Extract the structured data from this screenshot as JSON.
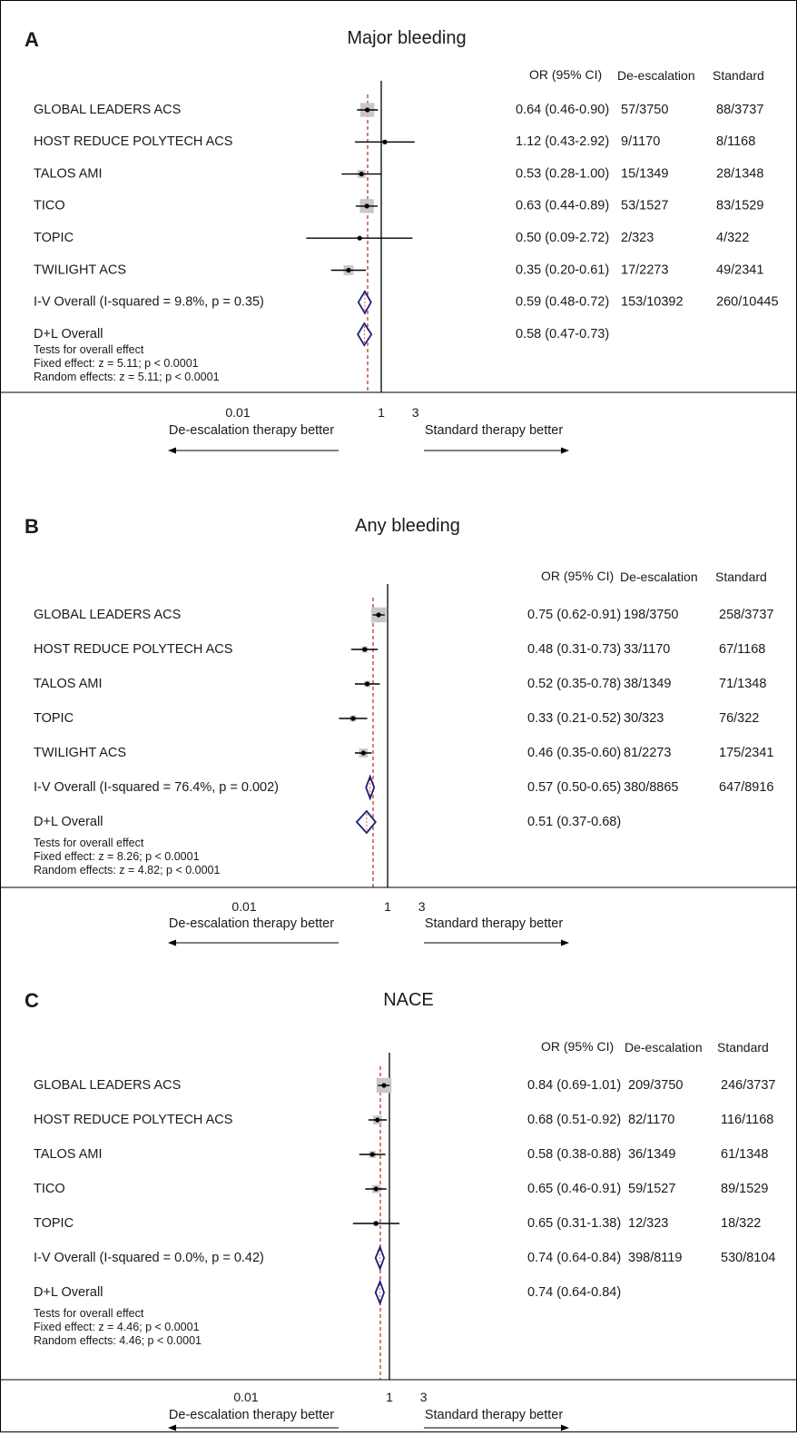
{
  "colors": {
    "text": "#1a1a1a",
    "line": "#000000",
    "box": "#c8c8c8",
    "diamond": "#1f1f7a",
    "reference_dashed": "#c0392b"
  },
  "chart_data": [
    {
      "type": "forest",
      "panel_letter": "A",
      "title": "Major bleeding",
      "column_headers": {
        "or": "OR (95% CI)",
        "de": "De-escalation",
        "std": "Standard"
      },
      "xscale": "log",
      "xticks": [
        {
          "v": 0.01,
          "label": "0.01"
        },
        {
          "v": 1,
          "label": "1"
        },
        {
          "v": 3,
          "label": "3"
        }
      ],
      "direction_labels": {
        "left": "De-escalation therapy better",
        "right": "Standard therapy better"
      },
      "pooled_line": 0.59,
      "rows": [
        {
          "label": "GLOBAL LEADERS ACS",
          "or": 0.64,
          "lo": 0.46,
          "hi": 0.9,
          "weight": 0.3,
          "or_text": "0.64 (0.46-0.90)",
          "de": "57/3750",
          "std": "88/3737"
        },
        {
          "label": "HOST REDUCE POLYTECH ACS",
          "or": 1.12,
          "lo": 0.43,
          "hi": 2.92,
          "weight": 0.03,
          "or_text": "1.12 (0.43-2.92)",
          "de": "9/1170",
          "std": "8/1168"
        },
        {
          "label": "TALOS AMI",
          "or": 0.53,
          "lo": 0.28,
          "hi": 1.0,
          "weight": 0.1,
          "or_text": "0.53 (0.28-1.00)",
          "de": "15/1349",
          "std": "28/1348"
        },
        {
          "label": "TICO",
          "or": 0.63,
          "lo": 0.44,
          "hi": 0.89,
          "weight": 0.3,
          "or_text": "0.63 (0.44-0.89)",
          "de": "53/1527",
          "std": "83/1529"
        },
        {
          "label": "TOPIC",
          "or": 0.5,
          "lo": 0.09,
          "hi": 2.72,
          "weight": 0.02,
          "or_text": "0.50 (0.09-2.72)",
          "de": "2/323",
          "std": "4/322"
        },
        {
          "label": "TWILIGHT ACS",
          "or": 0.35,
          "lo": 0.2,
          "hi": 0.61,
          "weight": 0.15,
          "or_text": "0.35 (0.20-0.61)",
          "de": "17/2273",
          "std": "49/2341"
        }
      ],
      "overall": [
        {
          "label": "I-V Overall  (I-squared = 9.8%, p  = 0.35)",
          "or": 0.59,
          "lo": 0.48,
          "hi": 0.72,
          "or_text": "0.59 (0.48-0.72)",
          "de": "153/10392",
          "std": "260/10445"
        },
        {
          "label": "D+L Overall",
          "or": 0.58,
          "lo": 0.47,
          "hi": 0.73,
          "or_text": "0.58 (0.47-0.73)",
          "de": "",
          "std": ""
        }
      ],
      "tests": [
        "Tests for overall effect",
        "Fixed effect: z = 5.11; p < 0.0001",
        "Random effects: z = 5.11; p < 0.0001"
      ]
    },
    {
      "type": "forest",
      "panel_letter": "B",
      "title": "Any bleeding",
      "column_headers": {
        "or": "OR (95% CI)",
        "de": "De-escalation",
        "std": "Standard"
      },
      "xscale": "log",
      "xticks": [
        {
          "v": 0.01,
          "label": "0.01"
        },
        {
          "v": 1,
          "label": "1"
        },
        {
          "v": 3,
          "label": "3"
        }
      ],
      "direction_labels": {
        "left": "De-escalation therapy better",
        "right": "Standard therapy better"
      },
      "pooled_line": 0.57,
      "rows": [
        {
          "label": "GLOBAL LEADERS ACS",
          "or": 0.75,
          "lo": 0.62,
          "hi": 0.91,
          "weight": 0.35,
          "or_text": "0.75 (0.62-0.91)",
          "de": "198/3750",
          "std": "258/3737"
        },
        {
          "label": "HOST REDUCE POLYTECH ACS",
          "or": 0.48,
          "lo": 0.31,
          "hi": 0.73,
          "weight": 0.06,
          "or_text": "0.48 (0.31-0.73)",
          "de": "33/1170",
          "std": "67/1168"
        },
        {
          "label": "TALOS AMI",
          "or": 0.52,
          "lo": 0.35,
          "hi": 0.78,
          "weight": 0.06,
          "or_text": "0.52 (0.35-0.78)",
          "de": "38/1349",
          "std": "71/1348"
        },
        {
          "label": "TOPIC",
          "or": 0.33,
          "lo": 0.21,
          "hi": 0.52,
          "weight": 0.06,
          "or_text": "0.33 (0.21-0.52)",
          "de": "30/323",
          "std": "76/322"
        },
        {
          "label": "TWILIGHT ACS",
          "or": 0.46,
          "lo": 0.35,
          "hi": 0.6,
          "weight": 0.12,
          "or_text": "0.46 (0.35-0.60)",
          "de": "81/2273",
          "std": "175/2341"
        }
      ],
      "overall": [
        {
          "label": "I-V Overall  (I-squared = 76.4%, p  = 0.002)",
          "or": 0.57,
          "lo": 0.5,
          "hi": 0.65,
          "or_text": "0.57 (0.50-0.65)",
          "de": "380/8865",
          "std": "647/8916"
        },
        {
          "label": "D+L Overall",
          "or": 0.51,
          "lo": 0.37,
          "hi": 0.68,
          "or_text": "0.51 (0.37-0.68)",
          "de": "",
          "std": ""
        }
      ],
      "tests": [
        "Tests for overall effect",
        "Fixed effect: z = 8.26; p < 0.0001",
        "Random effects: z = 4.82; p < 0.0001"
      ]
    },
    {
      "type": "forest",
      "panel_letter": "C",
      "title": "NACE",
      "column_headers": {
        "or": "OR (95% CI)",
        "de": "De-escalation",
        "std": "Standard"
      },
      "xscale": "log",
      "xticks": [
        {
          "v": 0.01,
          "label": "0.01"
        },
        {
          "v": 1,
          "label": "1"
        },
        {
          "v": 3,
          "label": "3"
        }
      ],
      "direction_labels": {
        "left": "De-escalation therapy better",
        "right": "Standard therapy better"
      },
      "pooled_line": 0.74,
      "rows": [
        {
          "label": "GLOBAL LEADERS ACS",
          "or": 0.84,
          "lo": 0.69,
          "hi": 1.01,
          "weight": 0.35,
          "or_text": "0.84 (0.69-1.01)",
          "de": "209/3750",
          "std": "246/3737"
        },
        {
          "label": "HOST REDUCE POLYTECH ACS",
          "or": 0.68,
          "lo": 0.51,
          "hi": 0.92,
          "weight": 0.12,
          "or_text": "0.68 (0.51-0.92)",
          "de": "82/1170",
          "std": "116/1168"
        },
        {
          "label": "TALOS AMI",
          "or": 0.58,
          "lo": 0.38,
          "hi": 0.88,
          "weight": 0.07,
          "or_text": "0.58 (0.38-0.88)",
          "de": "36/1349",
          "std": "61/1348"
        },
        {
          "label": "TICO",
          "or": 0.65,
          "lo": 0.46,
          "hi": 0.91,
          "weight": 0.1,
          "or_text": "0.65 (0.46-0.91)",
          "de": "59/1527",
          "std": "89/1529"
        },
        {
          "label": "TOPIC",
          "or": 0.65,
          "lo": 0.31,
          "hi": 1.38,
          "weight": 0.04,
          "or_text": "0.65 (0.31-1.38)",
          "de": "12/323",
          "std": "18/322"
        }
      ],
      "overall": [
        {
          "label": "I-V Overall  (I-squared = 0.0%, p  = 0.42)",
          "or": 0.74,
          "lo": 0.64,
          "hi": 0.84,
          "or_text": "0.74 (0.64-0.84)",
          "de": "398/8119",
          "std": "530/8104"
        },
        {
          "label": "D+L Overall",
          "or": 0.74,
          "lo": 0.64,
          "hi": 0.84,
          "or_text": "0.74 (0.64-0.84)",
          "de": "",
          "std": ""
        }
      ],
      "tests": [
        "Tests for overall effect",
        "Fixed effect: z = 4.46; p < 0.0001",
        "Random effects: 4.46; p < 0.0001"
      ]
    }
  ]
}
